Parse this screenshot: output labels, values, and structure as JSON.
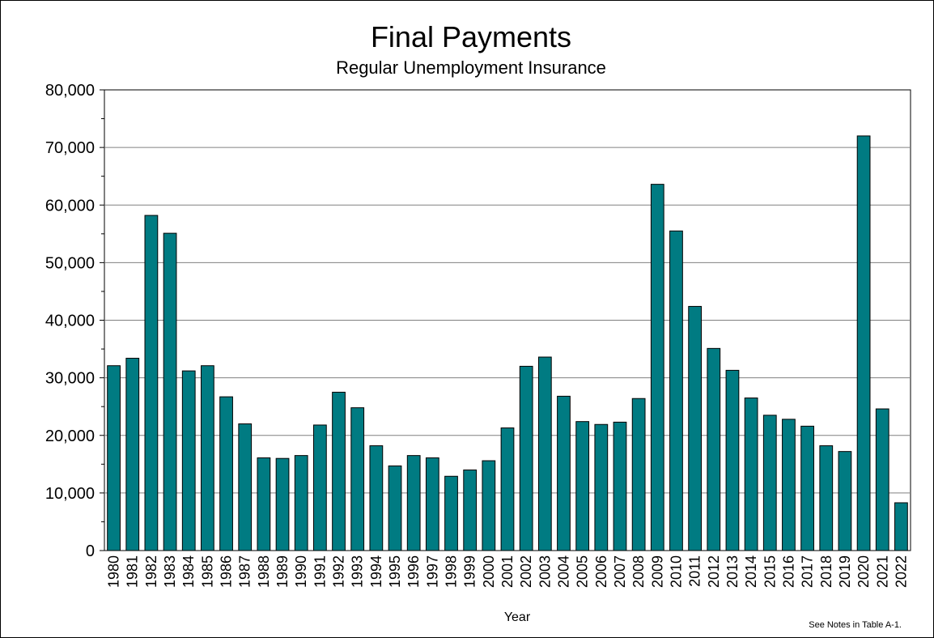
{
  "chart_data": {
    "type": "bar",
    "title": "Final Payments",
    "subtitle": "Regular Unemployment Insurance",
    "xlabel": "Year",
    "ylabel": "",
    "ylim": [
      0,
      80000
    ],
    "yticks": [
      "0",
      "10,000",
      "20,000",
      "30,000",
      "40,000",
      "50,000",
      "60,000",
      "70,000",
      "80,000"
    ],
    "ytick_values": [
      0,
      10000,
      20000,
      30000,
      40000,
      50000,
      60000,
      70000,
      80000
    ],
    "grid": "horizontal",
    "note": "See Notes in Table A-1.",
    "bar_color": "#007b82",
    "categories": [
      "1980",
      "1981",
      "1982",
      "1983",
      "1984",
      "1985",
      "1986",
      "1987",
      "1988",
      "1989",
      "1990",
      "1991",
      "1992",
      "1993",
      "1994",
      "1995",
      "1996",
      "1997",
      "1998",
      "1999",
      "2000",
      "2001",
      "2002",
      "2003",
      "2004",
      "2005",
      "2006",
      "2007",
      "2008",
      "2009",
      "2010",
      "2011",
      "2012",
      "2013",
      "2014",
      "2015",
      "2016",
      "2017",
      "2018",
      "2019",
      "2020",
      "2021",
      "2022"
    ],
    "values": [
      32100,
      33400,
      58200,
      55100,
      31200,
      32100,
      26700,
      22000,
      16100,
      16000,
      16500,
      21800,
      27500,
      24800,
      18200,
      14700,
      16500,
      16100,
      12900,
      14000,
      15600,
      21300,
      32000,
      33600,
      26800,
      22400,
      21900,
      22300,
      26400,
      63600,
      55500,
      42400,
      35100,
      31300,
      26500,
      23500,
      22800,
      21600,
      18200,
      17200,
      72000,
      24600,
      8300
    ]
  }
}
